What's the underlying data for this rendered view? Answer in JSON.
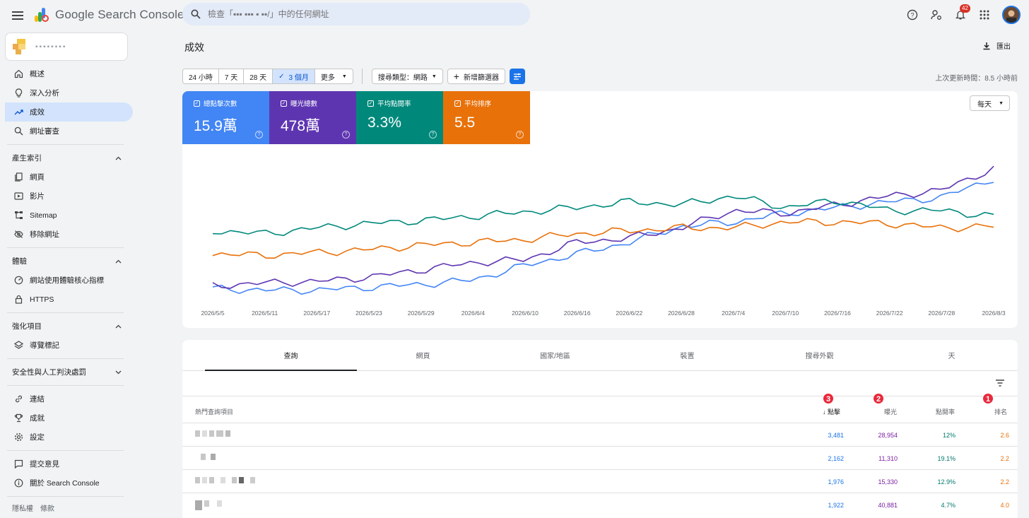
{
  "app": {
    "name": "Google Search Console"
  },
  "search": {
    "placeholder": "檢查「▪▪▪ ▪▪▪ ▪ ▪▪/」中的任何網址"
  },
  "topbar": {
    "notification_count": "42"
  },
  "sidebar": {
    "property_name": "▪▪▪▪▪▪▪▪",
    "items_main": [
      {
        "label": "概述",
        "icon": "home-icon"
      },
      {
        "label": "深入分析",
        "icon": "lightbulb-icon"
      },
      {
        "label": "成效",
        "icon": "trending-up-icon"
      },
      {
        "label": "網址審查",
        "icon": "search-icon"
      }
    ],
    "section_index": {
      "title": "產生索引",
      "items": [
        "網頁",
        "影片",
        "Sitemap",
        "移除網址"
      ]
    },
    "section_experience": {
      "title": "體驗",
      "items": [
        "網站使用體驗核心指標",
        "HTTPS"
      ]
    },
    "section_enhance": {
      "title": "強化項目",
      "items": [
        "導覽標記"
      ]
    },
    "section_security": {
      "title": "安全性與人工判決處罰"
    },
    "items_other": [
      "連結",
      "成就",
      "設定"
    ],
    "items_bottom": [
      "提交意見",
      "關於 Search Console"
    ],
    "footer": {
      "privacy": "隱私權",
      "terms": "條款"
    }
  },
  "page": {
    "title": "成效",
    "export_label": "匯出",
    "last_update": "上次更新時間：8.5 小時前"
  },
  "date_ranges": [
    "24 小時",
    "7 天",
    "28 天",
    "3 個月",
    "更多"
  ],
  "selected_range": "3 個月",
  "search_type": "搜尋類型：網路",
  "add_filter": "新增篩選器",
  "granularity": "每天",
  "metrics": [
    {
      "label": "總點擊次數",
      "value": "15.9萬",
      "color": "#4285f4"
    },
    {
      "label": "曝光總數",
      "value": "478萬",
      "color": "#5e35b1"
    },
    {
      "label": "平均點閱率",
      "value": "3.3%",
      "color": "#00897b"
    },
    {
      "label": "平均排序",
      "value": "5.5",
      "color": "#e8710a"
    }
  ],
  "chart_data": {
    "type": "line",
    "x": [
      "2026/5/5",
      "2026/5/11",
      "2026/5/17",
      "2026/5/23",
      "2026/5/29",
      "2026/6/4",
      "2026/6/10",
      "2026/6/16",
      "2026/6/22",
      "2026/6/28",
      "2026/7/4",
      "2026/7/10",
      "2026/7/16",
      "2026/7/22",
      "2026/7/28",
      "2026/8/3"
    ],
    "series": [
      {
        "name": "總點擊次數",
        "color": "#4285f4",
        "values": [
          0.1,
          0.09,
          0.09,
          0.11,
          0.13,
          0.16,
          0.26,
          0.34,
          0.42,
          0.53,
          0.56,
          0.62,
          0.66,
          0.7,
          0.73,
          0.86
        ]
      },
      {
        "name": "曝光總數",
        "color": "#5e35b1",
        "values": [
          0.12,
          0.14,
          0.15,
          0.18,
          0.23,
          0.28,
          0.3,
          0.42,
          0.45,
          0.52,
          0.64,
          0.62,
          0.68,
          0.74,
          0.78,
          0.93
        ]
      },
      {
        "name": "平均點閱率",
        "color": "#00897b",
        "values": [
          0.5,
          0.48,
          0.52,
          0.55,
          0.57,
          0.6,
          0.63,
          0.66,
          0.7,
          0.68,
          0.74,
          0.66,
          0.71,
          0.64,
          0.64,
          0.6
        ]
      },
      {
        "name": "平均排序",
        "color": "#e8710a",
        "values": [
          0.34,
          0.33,
          0.35,
          0.37,
          0.4,
          0.42,
          0.44,
          0.48,
          0.5,
          0.52,
          0.52,
          0.56,
          0.56,
          0.55,
          0.52,
          0.53
        ]
      }
    ],
    "grid": false,
    "legend": "top-left"
  },
  "tabs": [
    "查詢",
    "網頁",
    "國家/地區",
    "裝置",
    "搜尋外觀",
    "天"
  ],
  "table": {
    "columns": {
      "query": "熱門查詢項目",
      "clicks": "點擊",
      "impressions": "曝光",
      "ctr": "點閱率",
      "position": "排名"
    },
    "rows": [
      {
        "clicks": "3,481",
        "impressions": "28,954",
        "ctr": "12%",
        "position": "2.6"
      },
      {
        "clicks": "2,162",
        "impressions": "11,310",
        "ctr": "19.1%",
        "position": "2.2"
      },
      {
        "clicks": "1,976",
        "impressions": "15,330",
        "ctr": "12.9%",
        "position": "2.2"
      },
      {
        "clicks": "1,922",
        "impressions": "40,881",
        "ctr": "4.7%",
        "position": "4.0"
      }
    ]
  },
  "annotations": [
    "1",
    "2",
    "3"
  ]
}
